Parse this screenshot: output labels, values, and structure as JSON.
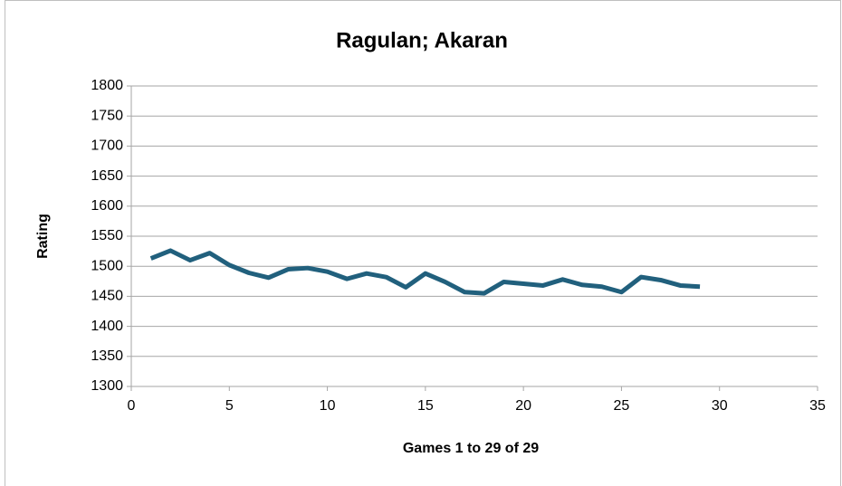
{
  "chart_data": {
    "type": "line",
    "title": "Ragulan; Akaran",
    "x_label": "Games 1 to 29 of 29",
    "y_label": "Rating",
    "x": [
      1,
      2,
      3,
      4,
      5,
      6,
      7,
      8,
      9,
      10,
      11,
      12,
      13,
      14,
      15,
      16,
      17,
      18,
      19,
      20,
      21,
      22,
      23,
      24,
      25,
      26,
      27,
      28,
      29
    ],
    "series": [
      {
        "name": "Rating",
        "color": "#21607d",
        "values": [
          1513,
          1526,
          1510,
          1522,
          1502,
          1489,
          1481,
          1495,
          1497,
          1491,
          1479,
          1488,
          1482,
          1465,
          1488,
          1474,
          1457,
          1455,
          1474,
          1471,
          1468,
          1478,
          1469,
          1466,
          1457,
          1482,
          1477,
          1468,
          1466
        ]
      }
    ],
    "xlim": [
      0,
      35
    ],
    "xticks": [
      0,
      5,
      10,
      15,
      20,
      25,
      30,
      35
    ],
    "ylim": [
      1300,
      1800
    ],
    "yticks": [
      1300,
      1350,
      1400,
      1450,
      1500,
      1550,
      1600,
      1650,
      1700,
      1750,
      1800
    ],
    "grid": true
  }
}
